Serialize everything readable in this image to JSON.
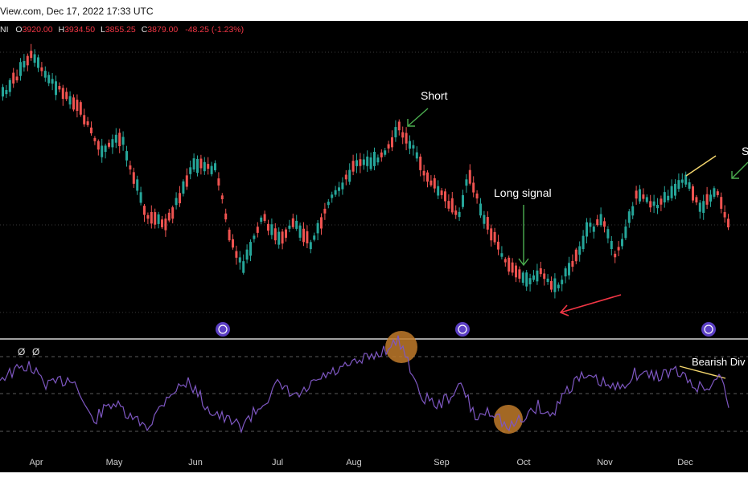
{
  "header": {
    "source_text": "View.com, Dec 17, 2022 17:33 UTC"
  },
  "ohlc": {
    "symbol_tail": "NI",
    "o_label": "O",
    "o_value": "3920.00",
    "h_label": "H",
    "h_value": "3934.50",
    "l_label": "L",
    "l_value": "3855.25",
    "c_label": "C",
    "c_value": "3879.00",
    "change": "-48.25 (-1.23%)"
  },
  "rsi_panel": {
    "glyph_1": "Ø",
    "glyph_2": "Ø"
  },
  "annotations": {
    "short_1": "Short",
    "long_signal": "Long signal",
    "short_2": "S",
    "bearish_div": "Bearish Div"
  },
  "colors": {
    "background": "#000000",
    "up_candle": "#26a69a",
    "down_candle": "#ef5350",
    "rsi_line": "#7e57c2",
    "annotation_arrow_green": "#4caf50",
    "annotation_arrow_red": "#f23645",
    "divergence_line": "#f5d76e",
    "circle_fill": "#c07a2a",
    "dividend_icon": "#5b3fc4"
  },
  "chart_data": {
    "type": "candlestick",
    "price_series": {
      "name": "",
      "close_path_months": [
        "Apr",
        "May",
        "Jun",
        "Jul",
        "Aug",
        "Sep",
        "Oct",
        "Nov",
        "Dec"
      ],
      "ohlc_last": {
        "open": 3920.0,
        "high": 3934.5,
        "low": 3855.25,
        "close": 3879.0
      }
    },
    "rsi_series": {
      "name": "",
      "overbought": 70,
      "oversold": 30,
      "middle": 50
    },
    "x_tick_labels": [
      "Apr",
      "May",
      "Jun",
      "Jul",
      "Aug",
      "Sep",
      "Oct",
      "Nov",
      "Dec"
    ],
    "price_gridlines": 3,
    "rsi_gridlines": 3,
    "title": "",
    "xlabel": "",
    "ylabel": ""
  }
}
